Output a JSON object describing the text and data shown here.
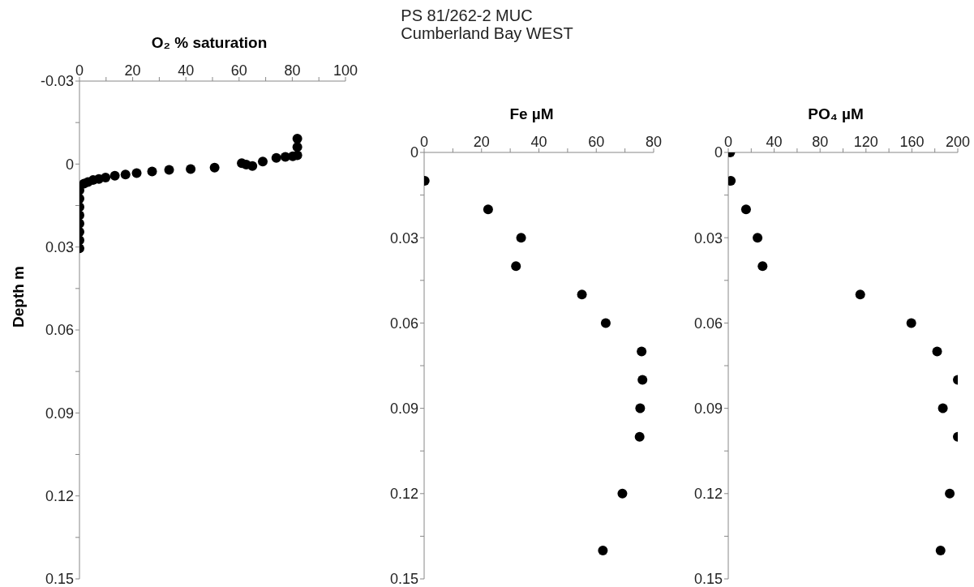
{
  "chart_data": [
    {
      "type": "scatter",
      "title": "O₂ % saturation",
      "ylabel": "Depth m",
      "marker": "circle",
      "color": "#000000",
      "xlim": [
        0,
        100
      ],
      "xticks": [
        0,
        {
          "value": 10,
          "label": null
        },
        20,
        {
          "value": 30,
          "label": null
        },
        40,
        {
          "value": 50,
          "label": null
        },
        60,
        {
          "value": 70,
          "label": null
        },
        80,
        {
          "value": 90,
          "label": null
        },
        100
      ],
      "ylim": [
        0.15,
        -0.03
      ],
      "yticks": [
        -0.03,
        {
          "value": -0.015,
          "label": null
        },
        0,
        {
          "value": 0.015,
          "label": null
        },
        0.03,
        {
          "value": 0.045,
          "label": null
        },
        0.06,
        {
          "value": 0.075,
          "label": null
        },
        0.09,
        {
          "value": 0.105,
          "label": null
        },
        0.12,
        {
          "value": 0.135,
          "label": null
        },
        0.15
      ],
      "x": [
        81.9,
        81.9,
        81.9,
        80.2,
        77.4,
        74,
        70,
        68.9,
        63.9,
        61,
        62.7,
        65,
        50.8,
        41.8,
        33.7,
        27.3,
        21.5,
        17.3,
        13.3,
        9.8,
        7.3,
        5.1,
        3.2,
        1.7,
        0,
        0,
        0,
        0,
        0,
        0,
        0,
        0
      ],
      "values": [
        -0.0092,
        -0.0062,
        -0.0032,
        -0.0028,
        -0.0026,
        -0.0022,
        null,
        -0.0009,
        null,
        -0.0003,
        0.0002,
        0.0007,
        0.0013,
        0.0018,
        0.0021,
        0.0027,
        0.0033,
        0.0038,
        0.0042,
        0.0049,
        0.0054,
        0.0058,
        0.0065,
        0.0071,
        0.0095,
        0.0125,
        0.0155,
        0.0185,
        0.0215,
        0.0245,
        0.0275,
        0.0305
      ]
    },
    {
      "type": "scatter",
      "title": "Fe µM",
      "marker": "circle",
      "color": "#000000",
      "annotations": [
        "PS 81/262-2 MUC",
        "Cumberland Bay WEST"
      ],
      "xlim": [
        0,
        80
      ],
      "xticks": [
        0,
        {
          "value": 10,
          "label": null
        },
        20,
        {
          "value": 30,
          "label": null
        },
        40,
        {
          "value": 50,
          "label": null
        },
        60,
        {
          "value": 70,
          "label": null
        },
        80
      ],
      "ylim": [
        0.15,
        0
      ],
      "yticks": [
        0,
        {
          "value": 0.015,
          "label": null
        },
        0.03,
        {
          "value": 0.045,
          "label": null
        },
        0.06,
        {
          "value": 0.075,
          "label": null
        },
        0.09,
        {
          "value": 0.105,
          "label": null
        },
        0.12,
        {
          "value": 0.135,
          "label": null
        },
        0.15
      ],
      "x": [
        0.2,
        22.3,
        33.8,
        32,
        55,
        63.3,
        75.8,
        76.1,
        75.3,
        75.1,
        69.1,
        62.3
      ],
      "values": [
        0.01,
        0.02,
        0.03,
        0.04,
        0.05,
        0.06,
        0.07,
        0.08,
        0.09,
        0.1,
        0.12,
        0.14
      ]
    },
    {
      "type": "scatter",
      "title": "PO₄ µM",
      "marker": "circle",
      "color": "#000000",
      "xlim": [
        0,
        200
      ],
      "xticks": [
        0,
        {
          "value": 20,
          "label": null
        },
        40,
        {
          "value": 60,
          "label": null
        },
        80,
        {
          "value": 100,
          "label": null
        },
        120,
        {
          "value": 140,
          "label": null
        },
        160,
        {
          "value": 180,
          "label": null
        },
        200
      ],
      "ylim": [
        0.15,
        0
      ],
      "yticks": [
        0,
        {
          "value": 0.015,
          "label": null
        },
        0.03,
        {
          "value": 0.045,
          "label": null
        },
        0.06,
        {
          "value": 0.075,
          "label": null
        },
        0.09,
        {
          "value": 0.105,
          "label": null
        },
        0.12,
        {
          "value": 0.135,
          "label": null
        },
        0.15
      ],
      "x": [
        1.7,
        2.2,
        15.5,
        25.5,
        29.9,
        115,
        159.5,
        182,
        200,
        187,
        200,
        193,
        185
      ],
      "values": [
        0,
        0.01,
        0.02,
        0.03,
        0.04,
        0.05,
        0.06,
        0.07,
        0.08,
        0.09,
        0.1,
        0.12,
        0.14
      ]
    }
  ]
}
